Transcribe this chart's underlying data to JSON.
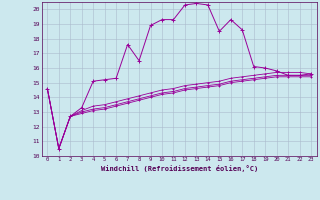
{
  "xlabel": "Windchill (Refroidissement éolien,°C)",
  "background_color": "#cce8ee",
  "line_color": "#990099",
  "grid_color": "#aabbcc",
  "xlim": [
    -0.5,
    23.5
  ],
  "ylim": [
    10,
    20.5
  ],
  "xticks": [
    0,
    1,
    2,
    3,
    4,
    5,
    6,
    7,
    8,
    9,
    10,
    11,
    12,
    13,
    14,
    15,
    16,
    17,
    18,
    19,
    20,
    21,
    22,
    23
  ],
  "yticks": [
    10,
    11,
    12,
    13,
    14,
    15,
    16,
    17,
    18,
    19,
    20
  ],
  "series": [
    [
      14.6,
      10.5,
      12.7,
      13.3,
      15.1,
      15.2,
      15.3,
      17.6,
      16.5,
      18.9,
      19.3,
      19.3,
      20.3,
      20.4,
      20.3,
      18.5,
      19.3,
      18.6,
      16.1,
      16.0,
      15.8,
      15.5,
      15.5,
      15.6
    ],
    [
      14.6,
      10.5,
      12.7,
      13.1,
      13.4,
      13.5,
      13.7,
      13.9,
      14.1,
      14.3,
      14.5,
      14.6,
      14.8,
      14.9,
      15.0,
      15.1,
      15.3,
      15.4,
      15.5,
      15.6,
      15.7,
      15.7,
      15.7,
      15.6
    ],
    [
      14.6,
      10.5,
      12.7,
      13.0,
      13.2,
      13.3,
      13.5,
      13.7,
      13.9,
      14.1,
      14.3,
      14.4,
      14.6,
      14.7,
      14.8,
      14.9,
      15.1,
      15.2,
      15.3,
      15.4,
      15.5,
      15.5,
      15.5,
      15.5
    ],
    [
      14.6,
      10.5,
      12.7,
      12.9,
      13.1,
      13.2,
      13.4,
      13.6,
      13.8,
      14.0,
      14.2,
      14.3,
      14.5,
      14.6,
      14.7,
      14.8,
      15.0,
      15.1,
      15.2,
      15.3,
      15.4,
      15.4,
      15.4,
      15.4
    ]
  ]
}
